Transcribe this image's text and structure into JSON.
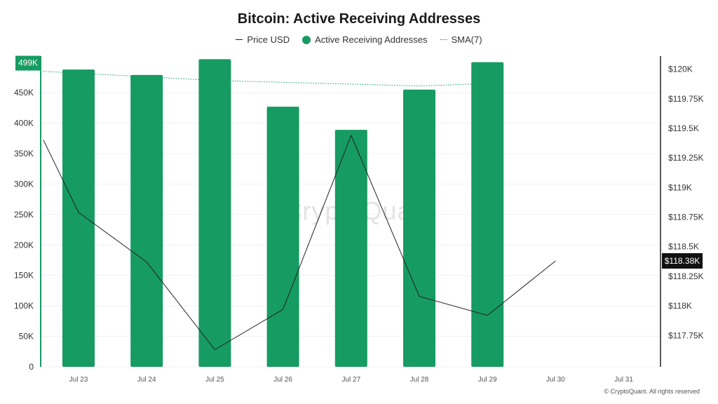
{
  "chart_data": {
    "type": "bar",
    "title": "Bitcoin: Active Receiving Addresses",
    "categories": [
      "Jul 23",
      "Jul 24",
      "Jul 25",
      "Jul 26",
      "Jul 27",
      "Jul 28",
      "Jul 29",
      "Jul 30",
      "Jul 31"
    ],
    "series": [
      {
        "name": "Active Receiving Addresses",
        "kind": "bar",
        "axis": "left",
        "color": "#169b62",
        "values": [
          488000,
          479000,
          505000,
          427000,
          389000,
          455000,
          500000,
          null,
          null
        ]
      },
      {
        "name": "Price USD",
        "kind": "line",
        "axis": "right",
        "color": "#222222",
        "values": [
          119400,
          118790,
          118370,
          117630,
          117970,
          119440,
          118080,
          117920,
          118380
        ]
      },
      {
        "name": "SMA(7)",
        "kind": "dotted-line",
        "axis": "left",
        "color": "#169b62",
        "values": [
          485000,
          476000,
          470000,
          467000,
          464000,
          461000,
          465000,
          null,
          null
        ]
      }
    ],
    "left_axis": {
      "ylim": [
        0,
        510000
      ],
      "ticks": [
        0,
        50000,
        100000,
        150000,
        200000,
        250000,
        300000,
        350000,
        400000,
        450000
      ],
      "tick_labels": [
        "0",
        "50K",
        "100K",
        "150K",
        "200K",
        "250K",
        "300K",
        "350K",
        "400K",
        "450K"
      ]
    },
    "right_axis": {
      "ylim": [
        117485,
        120110
      ],
      "ticks": [
        117750,
        118000,
        118250,
        118500,
        118750,
        119000,
        119250,
        119500,
        119750,
        120000
      ],
      "tick_labels": [
        "$117.75K",
        "$118K",
        "$118.25K",
        "$118.5K",
        "$118.75K",
        "$119K",
        "$119.25K",
        "$119.5K",
        "$119.75K",
        "$120K"
      ]
    },
    "left_marker": {
      "label": "499K",
      "value": 499000
    },
    "right_marker": {
      "label": "$118.38K",
      "value": 118380
    },
    "grid": true,
    "legend_position": "top-center"
  },
  "legend": [
    {
      "label": "Price USD",
      "icon": "line"
    },
    {
      "label": "Active Receiving Addresses",
      "icon": "dot"
    },
    {
      "label": "SMA(7)",
      "icon": "dotted-line"
    }
  ],
  "watermark": "CryptoQuant",
  "footer": {
    "copyright": "© CryptoQuant. All rights reserved"
  },
  "colors": {
    "bar": "#169b62",
    "price": "#222222",
    "sma": "#169b62",
    "axis_left": "#169b62",
    "axis_right": "#222222",
    "marker_right_bg": "#111111"
  }
}
